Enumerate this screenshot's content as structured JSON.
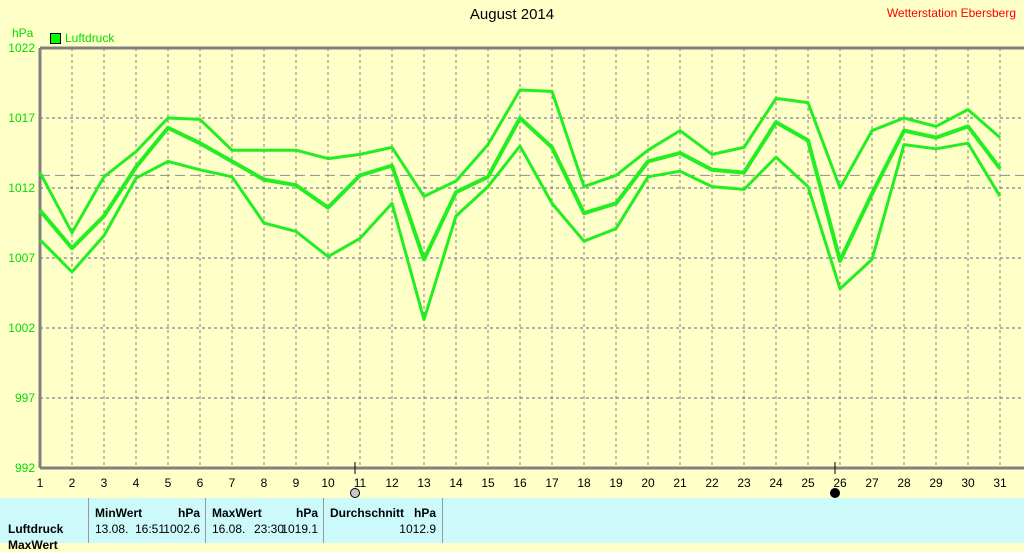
{
  "header": {
    "title": "August 2014",
    "station": "Wetterstation Ebersberg",
    "unit": "hPa"
  },
  "legend": [
    {
      "label": "Luftdruck",
      "color": "#00ff00"
    }
  ],
  "chart_data": {
    "type": "line",
    "title": "August 2014",
    "ylabel": "hPa",
    "ylim": [
      992,
      1022
    ],
    "yticks": [
      992,
      997,
      1002,
      1007,
      1012,
      1017,
      1022
    ],
    "x": [
      1,
      2,
      3,
      4,
      5,
      6,
      7,
      8,
      9,
      10,
      11,
      12,
      13,
      14,
      15,
      16,
      17,
      18,
      19,
      20,
      21,
      22,
      23,
      24,
      25,
      26,
      27,
      28,
      29,
      30,
      31
    ],
    "grid": true,
    "legend_position": "top-left",
    "series": [
      {
        "role": "max",
        "values": [
          1013.1,
          1008.8,
          1012.8,
          1014.6,
          1017.0,
          1016.9,
          1014.7,
          1014.7,
          1014.7,
          1014.1,
          1014.4,
          1014.9,
          1011.4,
          1012.5,
          1015.1,
          1019.0,
          1018.9,
          1012.1,
          1012.9,
          1014.7,
          1016.1,
          1014.4,
          1014.9,
          1018.4,
          1018.1,
          1012.0,
          1016.1,
          1017.0,
          1016.4,
          1017.6,
          1015.6
        ]
      },
      {
        "name": "Luftdruck",
        "role": "mean",
        "values": [
          1010.4,
          1007.7,
          1010.0,
          1013.5,
          1016.3,
          1015.2,
          1013.9,
          1012.6,
          1012.2,
          1010.6,
          1012.9,
          1013.6,
          1006.9,
          1011.7,
          1012.8,
          1017.0,
          1014.9,
          1010.2,
          1010.9,
          1013.9,
          1014.5,
          1013.3,
          1013.1,
          1016.7,
          1015.4,
          1006.8,
          1011.6,
          1016.1,
          1015.6,
          1016.4,
          1013.4
        ]
      },
      {
        "role": "min",
        "values": [
          1008.3,
          1006.0,
          1008.6,
          1012.7,
          1013.9,
          1013.3,
          1012.8,
          1009.5,
          1008.9,
          1007.1,
          1008.4,
          1010.9,
          1002.6,
          1010.0,
          1012.1,
          1015.0,
          1010.9,
          1008.2,
          1009.1,
          1012.8,
          1013.2,
          1012.1,
          1011.9,
          1014.2,
          1012.1,
          1004.8,
          1006.9,
          1015.1,
          1014.8,
          1015.2,
          1011.4
        ]
      }
    ],
    "average_line": 1012.9,
    "moon_phases": [
      {
        "day": 11,
        "phase": "full-moon"
      },
      {
        "day": 26,
        "phase": "new-moon"
      }
    ],
    "line_color": "#22ee22"
  },
  "table": {
    "row_labels": [
      "Luftdruck",
      "MaxWert"
    ],
    "columns": [
      {
        "header": "MinWert",
        "unit": "hPa",
        "date": "13.08.",
        "time": "16:51",
        "value": "1002.6"
      },
      {
        "header": "MaxWert",
        "unit": "hPa",
        "date": "16.08.",
        "time": "23:30",
        "value": "1019.1"
      },
      {
        "header": "Durchschnitt",
        "unit": "hPa",
        "value": "1012.9"
      }
    ]
  }
}
